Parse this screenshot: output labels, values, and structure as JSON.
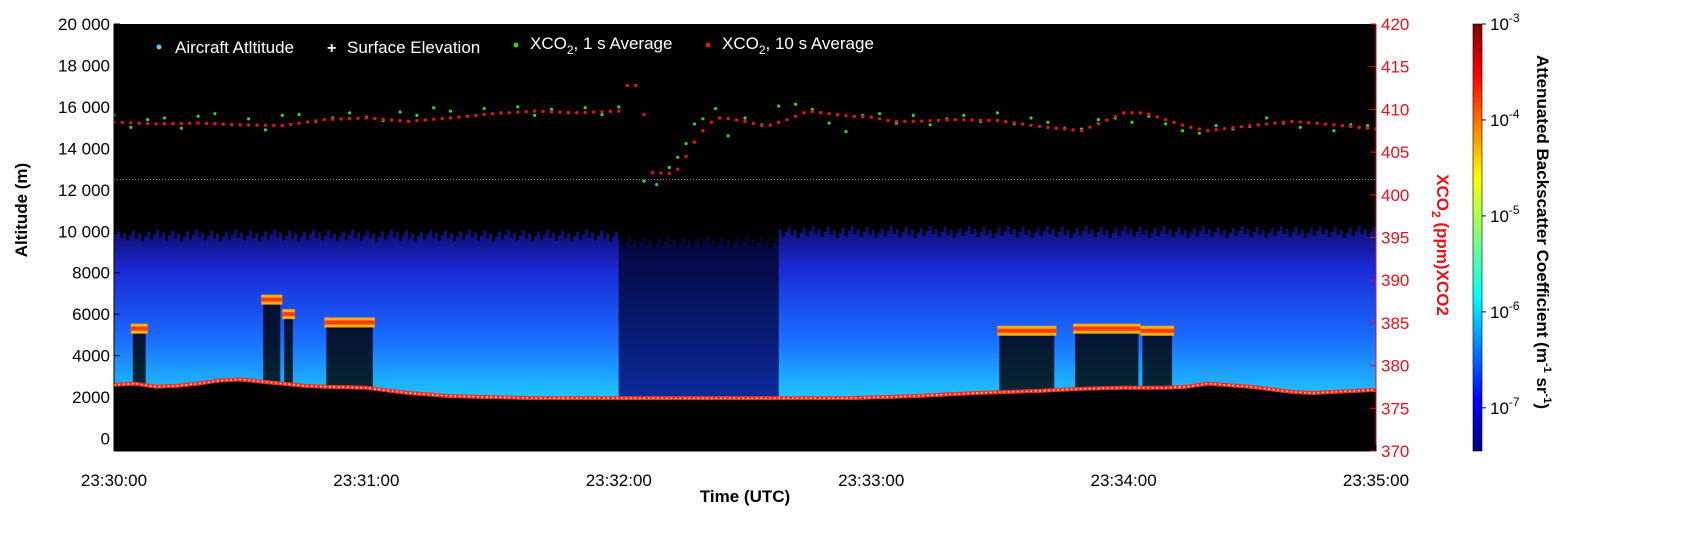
{
  "chart_data": {
    "type": "heatmap",
    "xlabel": "Time (UTC)",
    "ylabel": "Altitude (m)",
    "y2label": "XCO2 (ppm)XCO2",
    "colorbar_label": "Attenuated Backscatter Coefficient (m-1 sr-1)",
    "colors": {
      "background": "#000000",
      "right_axis": "#e8101a",
      "xco2_1s": "#39d12a",
      "xco2_10s": "#e8101a",
      "aircraft": "#5fc6ff",
      "surface": "#ffffff"
    },
    "x_ticks": [
      "23:30:00",
      "23:31:00",
      "23:32:00",
      "23:33:00",
      "23:34:00",
      "23:35:00"
    ],
    "xlim_seconds": [
      0,
      300
    ],
    "y_ticks": [
      "20 000",
      "18 000",
      "16 000",
      "14 000",
      "12 000",
      "10 000",
      "8000",
      "6000",
      "4000",
      "2000",
      "0"
    ],
    "ylim": [
      -600,
      20000
    ],
    "y2_ticks": [
      "420",
      "415",
      "410",
      "405",
      "400",
      "395",
      "390",
      "385",
      "380",
      "375",
      "370"
    ],
    "y2lim": [
      370,
      420
    ],
    "colorbar_ticks": [
      "10-3",
      "10-4",
      "10-5",
      "10-6",
      "10-7"
    ],
    "colorbar_scale": "log",
    "clim": [
      1e-07,
      0.001
    ],
    "legend": {
      "placement": "top-left",
      "entries": [
        {
          "label": "Aircraft Atltitude",
          "color": "#5fc6ff",
          "marker": "dot"
        },
        {
          "label": "Surface Elevation",
          "color": "#ffffff",
          "marker": "plus"
        },
        {
          "label": "XCO2, 1 s Average",
          "color": "#39d12a",
          "marker": "dot"
        },
        {
          "label": "XCO2, 10 s Average",
          "color": "#e8101a",
          "marker": "dot"
        }
      ]
    },
    "aircraft_altitude_m": 12500,
    "surface_elevation": {
      "time_s": [
        0,
        5,
        10,
        15,
        20,
        25,
        30,
        35,
        40,
        45,
        50,
        60,
        70,
        80,
        90,
        100,
        110,
        120,
        135,
        150,
        160,
        175,
        190,
        205,
        220,
        230,
        240,
        250,
        255,
        260,
        270,
        280,
        285,
        290,
        295,
        300
      ],
      "altitude_m": [
        2600,
        2650,
        2500,
        2550,
        2650,
        2800,
        2850,
        2750,
        2650,
        2550,
        2500,
        2450,
        2200,
        2050,
        2000,
        1950,
        1950,
        1950,
        1950,
        1950,
        1950,
        1950,
        2050,
        2200,
        2300,
        2400,
        2450,
        2450,
        2500,
        2650,
        2500,
        2250,
        2200,
        2250,
        2300,
        2350
      ]
    },
    "backscatter_layers": [
      {
        "start_s": 0,
        "end_s": 120,
        "top_m": 9800,
        "level": 1e-06
      },
      {
        "start_s": 120,
        "end_s": 158,
        "top_m": 9500,
        "level": 3e-07
      },
      {
        "start_s": 158,
        "end_s": 300,
        "top_m": 10000,
        "level": 1e-06
      }
    ],
    "clouds": [
      {
        "start_s": 4,
        "end_s": 8,
        "alt_m": 5300,
        "level": 0.0001
      },
      {
        "start_s": 35,
        "end_s": 40,
        "alt_m": 6700,
        "level": 0.0001
      },
      {
        "start_s": 40,
        "end_s": 43,
        "alt_m": 6000,
        "level": 0.0001
      },
      {
        "start_s": 50,
        "end_s": 62,
        "alt_m": 5600,
        "level": 0.0001
      },
      {
        "start_s": 210,
        "end_s": 224,
        "alt_m": 5200,
        "level": 0.0001
      },
      {
        "start_s": 228,
        "end_s": 244,
        "alt_m": 5300,
        "level": 0.0001
      },
      {
        "start_s": 244,
        "end_s": 252,
        "alt_m": 5200,
        "level": 0.0001
      }
    ],
    "series_10s": {
      "name": "XCO2, 10 s Average",
      "time_s": [
        0,
        10,
        20,
        30,
        40,
        50,
        60,
        70,
        80,
        90,
        100,
        110,
        115,
        120,
        122,
        125,
        128,
        133,
        135,
        137,
        140,
        143,
        145,
        150,
        155,
        160,
        165,
        170,
        175,
        180,
        185,
        190,
        200,
        210,
        220,
        230,
        240,
        245,
        250,
        255,
        260,
        270,
        280,
        290,
        300
      ],
      "xco2_ppm": [
        408.5,
        408.3,
        408.4,
        408.2,
        408.1,
        408.8,
        409.0,
        408.6,
        409.0,
        409.5,
        409.8,
        409.6,
        409.7,
        409.8,
        412.8,
        412.8,
        402.6,
        402.5,
        403.5,
        405.5,
        407.5,
        409.0,
        409.0,
        408.6,
        408.0,
        408.8,
        409.8,
        409.5,
        409.2,
        409.1,
        408.6,
        408.6,
        408.8,
        408.7,
        408.0,
        407.5,
        409.6,
        409.6,
        408.8,
        408.0,
        407.5,
        408.1,
        408.6,
        408.2,
        407.7
      ]
    },
    "series_1s": {
      "name": "XCO2, 1 s Average",
      "time_s": [
        0,
        4,
        8,
        12,
        16,
        20,
        24,
        28,
        32,
        36,
        40,
        44,
        48,
        52,
        56,
        60,
        64,
        68,
        72,
        76,
        80,
        84,
        88,
        92,
        96,
        100,
        104,
        108,
        112,
        116,
        120,
        126,
        129,
        132,
        134,
        136,
        138,
        140,
        143,
        146,
        150,
        154,
        158,
        162,
        166,
        170,
        174,
        178,
        182,
        186,
        190,
        194,
        198,
        202,
        206,
        210,
        214,
        218,
        222,
        226,
        230,
        234,
        238,
        242,
        246,
        250,
        254,
        258,
        262,
        266,
        270,
        274,
        278,
        282,
        286,
        290,
        294,
        298
      ],
      "xco2_ppm": [
        409.3,
        407.9,
        408.8,
        409.0,
        407.8,
        409.2,
        409.5,
        408.2,
        408.9,
        407.6,
        409.3,
        409.4,
        408.6,
        409.0,
        409.6,
        409.1,
        408.7,
        409.7,
        409.3,
        410.2,
        409.8,
        409.2,
        410.1,
        409.6,
        410.3,
        409.3,
        410.0,
        409.6,
        410.2,
        409.4,
        410.3,
        401.6,
        401.2,
        403.2,
        404.4,
        406.0,
        408.3,
        408.9,
        410.1,
        406.9,
        409.0,
        408.2,
        410.4,
        410.6,
        410.0,
        408.4,
        407.4,
        409.3,
        409.5,
        408.4,
        409.3,
        408.2,
        408.9,
        409.3,
        408.6,
        409.6,
        408.3,
        409.0,
        408.5,
        407.8,
        407.7,
        408.8,
        409.0,
        408.5,
        409.2,
        408.3,
        407.5,
        407.2,
        408.1,
        407.7,
        408.0,
        409.0,
        408.4,
        407.9,
        408.4,
        407.5,
        408.2,
        408.1
      ]
    }
  }
}
